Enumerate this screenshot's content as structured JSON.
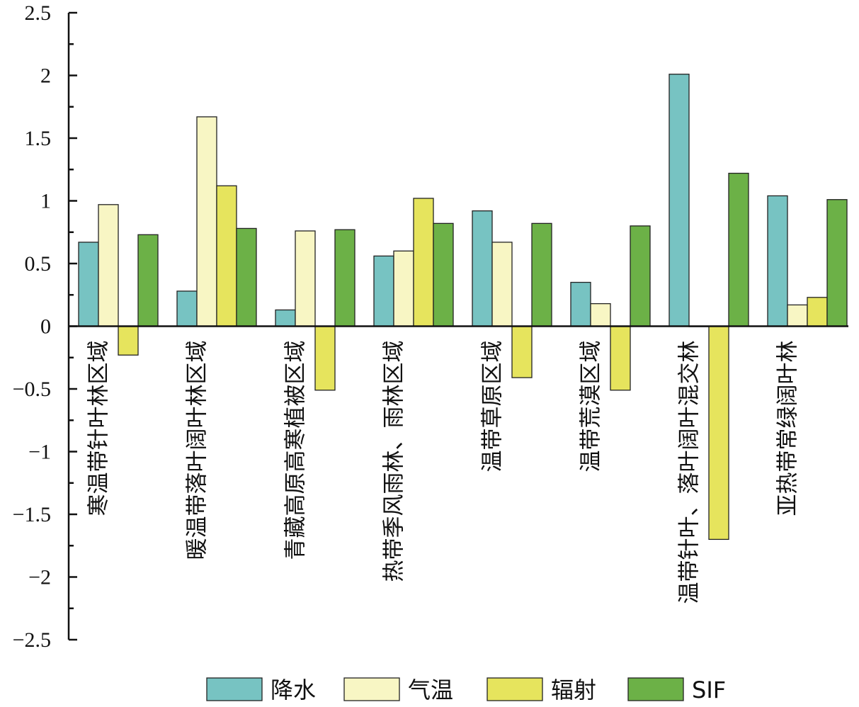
{
  "chart_data": {
    "type": "bar",
    "title": "",
    "xlabel": "",
    "ylabel": "",
    "ylim": [
      -2.5,
      2.5
    ],
    "yticks": [
      "2.5",
      "2",
      "1.5",
      "1",
      "0.5",
      "0",
      "−0.5",
      "−1",
      "−1.5",
      "−2",
      "−2.5"
    ],
    "categories": [
      "寒温带针叶林区域",
      "暖温带落叶阔叶林区域",
      "青藏高原高寒植被区域",
      "热带季风雨林、雨林区域",
      "温带草原区域",
      "温带荒漠区域",
      "温带针叶、落叶阔叶混交林",
      "亚热带常绿阔叶林"
    ],
    "series": [
      {
        "name": "降水",
        "color": "#77c3c2",
        "values": [
          0.67,
          0.28,
          0.13,
          0.56,
          0.92,
          0.35,
          2.01,
          1.04
        ]
      },
      {
        "name": "气温",
        "color": "#f8f6c4",
        "values": [
          0.97,
          1.67,
          0.76,
          0.6,
          0.67,
          0.18,
          0.0,
          0.17
        ]
      },
      {
        "name": "辐射",
        "color": "#e6e45d",
        "values": [
          -0.23,
          1.12,
          -0.51,
          1.02,
          -0.41,
          -0.51,
          -1.7,
          0.23
        ]
      },
      {
        "name": "SIF",
        "color": "#6cb147",
        "values": [
          0.73,
          0.78,
          0.77,
          0.82,
          0.82,
          0.8,
          1.22,
          1.01
        ]
      }
    ],
    "legend_position": "bottom",
    "grid": false
  }
}
